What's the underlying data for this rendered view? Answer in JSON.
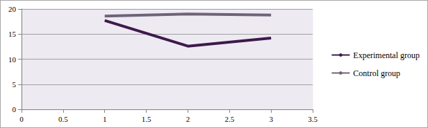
{
  "chart_data": {
    "type": "line",
    "x": [
      1,
      2,
      3
    ],
    "series": [
      {
        "name": "Experimental group",
        "color": "#3d1a4c",
        "values": [
          17.7,
          12.6,
          14.2
        ]
      },
      {
        "name": "Control group",
        "color": "#6f6378",
        "values": [
          18.6,
          19.0,
          18.8
        ]
      }
    ],
    "xlim": [
      0,
      3.5
    ],
    "xticks": [
      0,
      0.5,
      1,
      1.5,
      2,
      2.5,
      3,
      3.5
    ],
    "ylim": [
      0,
      20
    ],
    "yticks": [
      0,
      5,
      10,
      15,
      20
    ],
    "grid": true,
    "legend": "right"
  }
}
